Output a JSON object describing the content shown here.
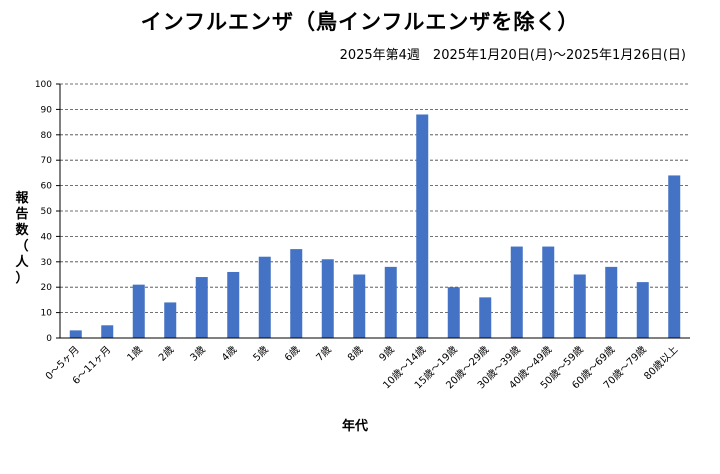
{
  "chart_data": {
    "type": "bar",
    "title": "インフルエンザ（鳥インフルエンザを除く）",
    "subtitle": "2025年第4週　2025年1月20日(月)〜2025年1月26日(日)",
    "xlabel": "年代",
    "ylabel_chars": [
      "報",
      "告",
      "数",
      "（",
      "人",
      "）"
    ],
    "ylim": [
      0,
      100
    ],
    "yticks": [
      0,
      10,
      20,
      30,
      40,
      50,
      60,
      70,
      80,
      90,
      100
    ],
    "grid": true,
    "bar_color": "#4472C4",
    "categories": [
      "0〜5ヶ月",
      "6〜11ヶ月",
      "1歳",
      "2歳",
      "3歳",
      "4歳",
      "5歳",
      "6歳",
      "7歳",
      "8歳",
      "9歳",
      "10歳〜14歳",
      "15歳〜19歳",
      "20歳〜29歳",
      "30歳〜39歳",
      "40歳〜49歳",
      "50歳〜59歳",
      "60歳〜69歳",
      "70歳〜79歳",
      "80歳以上"
    ],
    "values": [
      3,
      5,
      21,
      14,
      24,
      26,
      32,
      35,
      31,
      25,
      28,
      88,
      20,
      16,
      36,
      36,
      25,
      28,
      22,
      64
    ]
  }
}
